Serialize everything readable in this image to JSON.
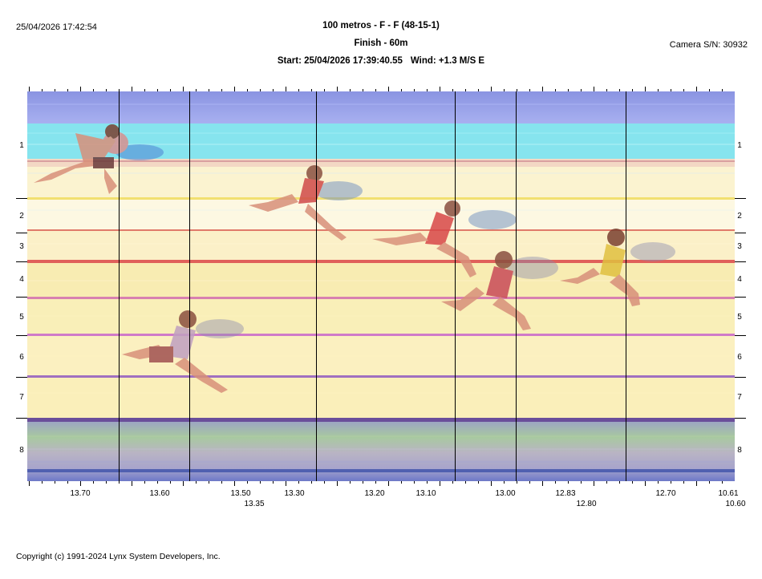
{
  "header": {
    "timestamp": "25/04/2026 17:42:54",
    "title": "100 metros - F - F (48-15-1)",
    "subtitle": "Finish - 60m",
    "start": "Start: 25/04/2026 17:39:40.55",
    "wind": "Wind: +1.3 M/S E",
    "camera": "Camera S/N: 30932"
  },
  "lanes": [
    "1",
    "2",
    "3",
    "4",
    "5",
    "6",
    "7",
    "8"
  ],
  "time_labels": {
    "row1": [
      "13.70",
      "13.60",
      "13.50",
      "13.30",
      "13.20",
      "13.10",
      "13.00",
      "12.83",
      "12.70",
      "10.61"
    ],
    "row2": [
      "13.35",
      "12.80",
      "10.60"
    ]
  },
  "colors": {
    "background": "#ffffff",
    "track_yellow": "#fbf3c4",
    "top_band": "#9ea8e6",
    "cyan_band": "#7fe6f2",
    "lane_line": "#e8a0c8",
    "time_line": "#000000"
  },
  "copyright": "Copyright (c) 1991-2024 Lynx System Developers, Inc."
}
